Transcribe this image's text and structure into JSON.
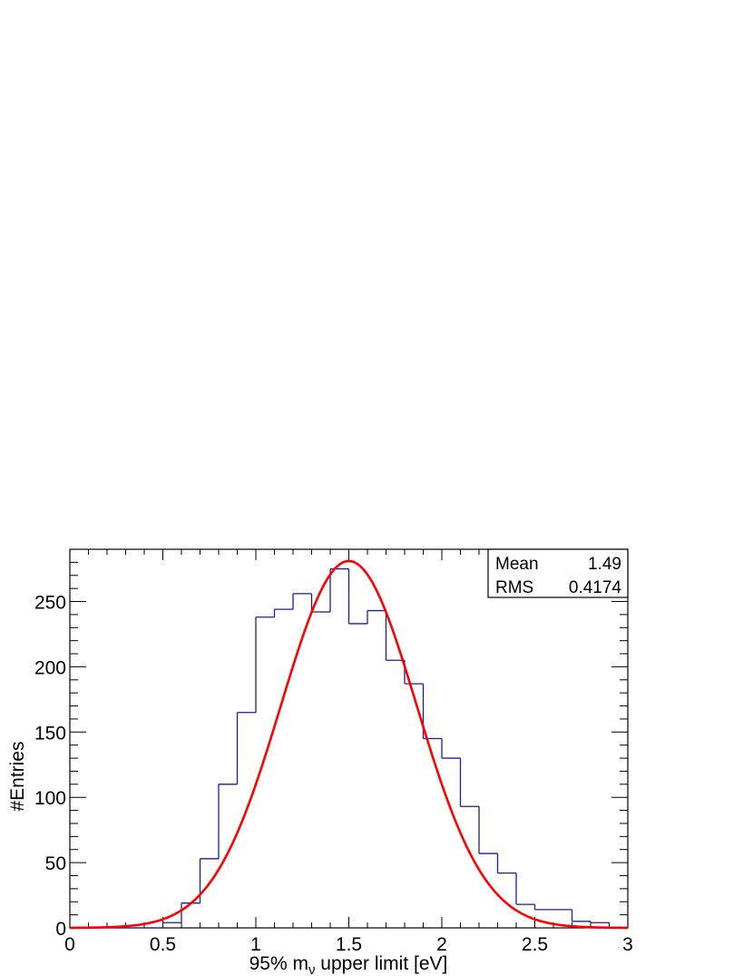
{
  "chart_data": {
    "type": "histogram",
    "xlabel_main": "95% m",
    "xlabel_sub": "ν",
    "xlabel_rest": " upper limit [eV]",
    "ylabel": "#Entries",
    "xlim": [
      0,
      3
    ],
    "ylim": [
      0,
      290
    ],
    "x_ticks": [
      {
        "value": 0,
        "label": "0"
      },
      {
        "value": 0.5,
        "label": "0.5"
      },
      {
        "value": 1,
        "label": "1"
      },
      {
        "value": 1.5,
        "label": "1.5"
      },
      {
        "value": 2,
        "label": "2"
      },
      {
        "value": 2.5,
        "label": "2.5"
      },
      {
        "value": 3,
        "label": "3"
      }
    ],
    "y_ticks": [
      {
        "value": 0,
        "label": "0"
      },
      {
        "value": 50,
        "label": "50"
      },
      {
        "value": 100,
        "label": "100"
      },
      {
        "value": 150,
        "label": "150"
      },
      {
        "value": 200,
        "label": "200"
      },
      {
        "value": 250,
        "label": "250"
      }
    ],
    "bin_edges": [
      0,
      0.1,
      0.2,
      0.3,
      0.4,
      0.5,
      0.6,
      0.7,
      0.8,
      0.9,
      1.0,
      1.1,
      1.2,
      1.3,
      1.4,
      1.5,
      1.6,
      1.7,
      1.8,
      1.9,
      2.0,
      2.1,
      2.2,
      2.3,
      2.4,
      2.5,
      2.6,
      2.7,
      2.8,
      2.9,
      3.0
    ],
    "counts": [
      0,
      0,
      0,
      0,
      0,
      4,
      19,
      53,
      110,
      165,
      238,
      244,
      256,
      242,
      275,
      233,
      243,
      205,
      187,
      145,
      130,
      93,
      57,
      42,
      18,
      14,
      14,
      5,
      4,
      0
    ],
    "histogram_color": "#1b1b9e",
    "fit": {
      "function": "gaussian",
      "amplitude": 281,
      "mean": 1.5,
      "sigma": 0.365,
      "color": "#ff0000"
    },
    "stats": {
      "mean_label": "Mean",
      "mean_value": "1.49",
      "rms_label": "RMS",
      "rms_value": "0.4174"
    }
  }
}
